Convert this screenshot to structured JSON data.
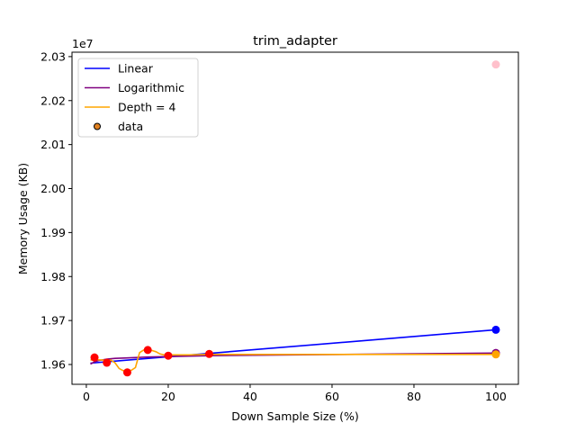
{
  "chart_data": {
    "type": "line",
    "title": "trim_adapter",
    "xlabel": "Down Sample Size (%)",
    "ylabel": "Memory Usage (KB)",
    "y_offset_label": "1e7",
    "xlim": [
      -3.5,
      105.5
    ],
    "ylim": [
      19555000,
      20310000
    ],
    "x_ticks": [
      0,
      20,
      40,
      60,
      80,
      100
    ],
    "y_ticks": [
      19600000,
      19700000,
      19800000,
      19900000,
      20000000,
      20100000,
      20200000,
      20300000
    ],
    "y_tick_labels": [
      "1.96",
      "1.97",
      "1.98",
      "1.99",
      "2.00",
      "2.01",
      "2.02",
      "2.03"
    ],
    "grid": false,
    "legend_position": "top-left",
    "legend": [
      "Linear",
      "Logarithmic",
      "Depth = 4",
      "data"
    ],
    "series": [
      {
        "name": "Linear",
        "color": "#0000ff",
        "x": [
          1,
          100
        ],
        "y": [
          19603000,
          19679000
        ],
        "end_marker": {
          "x": 100,
          "y": 19679000
        }
      },
      {
        "name": "Logarithmic",
        "color": "#800080",
        "x": [
          1,
          2,
          3,
          5,
          7,
          10,
          15,
          20,
          30,
          50,
          75,
          100
        ],
        "y": [
          19601000,
          19606000,
          19609000,
          19612000,
          19614000,
          19615000,
          19617000,
          19618000,
          19620000,
          19622000,
          19624000,
          19626000
        ],
        "end_marker": {
          "x": 100,
          "y": 19626000
        }
      },
      {
        "name": "Depth = 4",
        "color": "#ffa500",
        "x": [
          1,
          2,
          4,
          5,
          6,
          7,
          8,
          9,
          10,
          11,
          12,
          13,
          14,
          15,
          16,
          17,
          18,
          19,
          20,
          25,
          30,
          100
        ],
        "y": [
          19610000,
          19611000,
          19610000,
          19609000,
          19610000,
          19604000,
          19591000,
          19586000,
          19586000,
          19587000,
          19593000,
          19627000,
          19633000,
          19633000,
          19632000,
          19629000,
          19624000,
          19622000,
          19622000,
          19622000,
          19623000,
          19623000
        ],
        "end_marker": {
          "x": 100,
          "y": 19623000
        }
      }
    ],
    "data_points": {
      "name": "data",
      "color": "#ff0000",
      "legend_color": "#e08020",
      "x": [
        2,
        5,
        10,
        15,
        20,
        30
      ],
      "y": [
        19616000,
        19604000,
        19582000,
        19633000,
        19620000,
        19624000
      ]
    },
    "outlier_points": [
      {
        "x": 100,
        "y": 20282000,
        "color": "#ffc0cb"
      },
      {
        "x": 100,
        "y": 19626000,
        "color": "#800080"
      }
    ]
  }
}
